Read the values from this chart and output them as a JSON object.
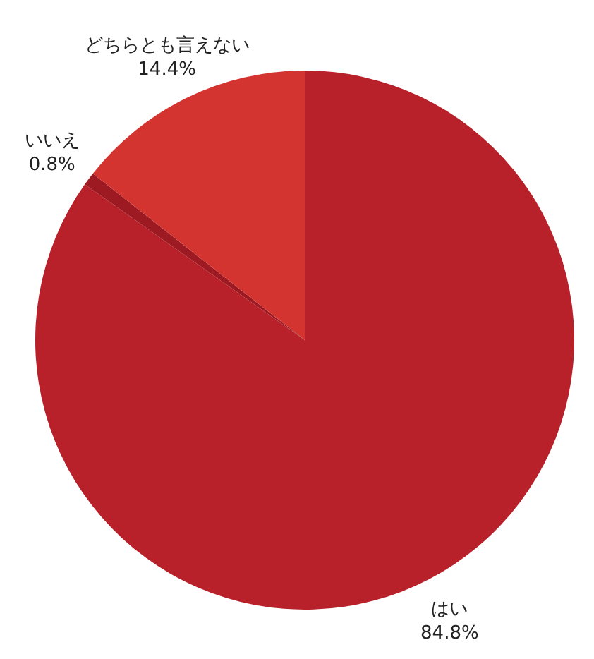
{
  "chart_data": {
    "type": "pie",
    "categories": [
      "はい",
      "いいえ",
      "どちらとも言えない"
    ],
    "values": [
      84.8,
      0.8,
      14.4
    ],
    "colors": [
      "#b8202a",
      "#9e1a22",
      "#d3342f"
    ],
    "value_labels": [
      "84.8%",
      "0.8%",
      "14.4%"
    ],
    "legend": false
  }
}
